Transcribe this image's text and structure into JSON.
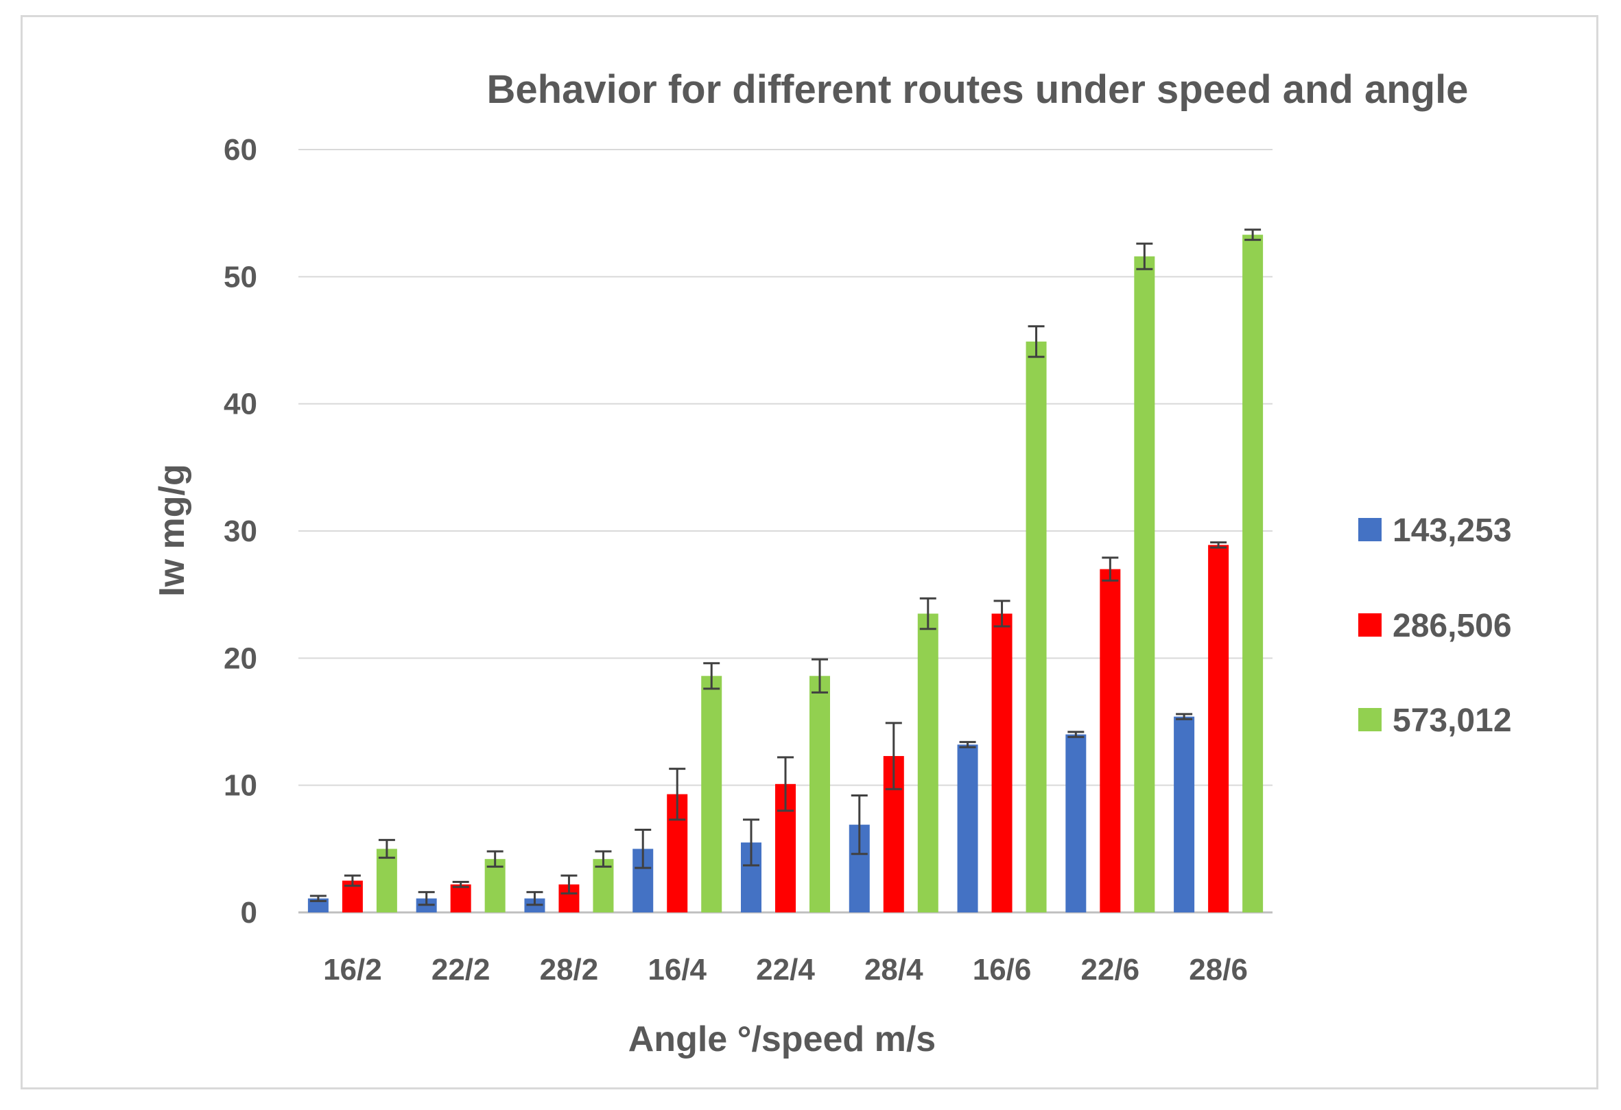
{
  "chart_data": {
    "type": "bar",
    "title": "Behavior for different routes under speed and angle",
    "xlabel": "Angle °/speed m/s",
    "ylabel": "Iw mg/g",
    "ylim": [
      0,
      60
    ],
    "yticks": [
      0,
      10,
      20,
      30,
      40,
      50,
      60
    ],
    "grid": true,
    "legend": "right",
    "categories": [
      "16/2",
      "22/2",
      "28/2",
      "16/4",
      "22/4",
      "28/4",
      "16/6",
      "22/6",
      "28/6"
    ],
    "series": [
      {
        "name": "143,253",
        "color": "#4472c4",
        "values": [
          1.1,
          1.1,
          1.1,
          5.0,
          5.5,
          6.9,
          13.2,
          14.0,
          15.4
        ],
        "errors": [
          0.2,
          0.5,
          0.5,
          1.5,
          1.8,
          2.3,
          0.2,
          0.2,
          0.2
        ]
      },
      {
        "name": "286,506",
        "color": "#ff0000",
        "values": [
          2.5,
          2.2,
          2.2,
          9.3,
          10.1,
          12.3,
          23.5,
          27.0,
          28.9
        ],
        "errors": [
          0.4,
          0.2,
          0.7,
          2.0,
          2.1,
          2.6,
          1.0,
          0.9,
          0.2
        ]
      },
      {
        "name": "573,012",
        "color": "#92d050",
        "values": [
          5.0,
          4.2,
          4.2,
          18.6,
          18.6,
          23.5,
          44.9,
          51.6,
          53.3
        ],
        "errors": [
          0.7,
          0.6,
          0.6,
          1.0,
          1.3,
          1.2,
          1.2,
          1.0,
          0.4
        ]
      }
    ]
  }
}
